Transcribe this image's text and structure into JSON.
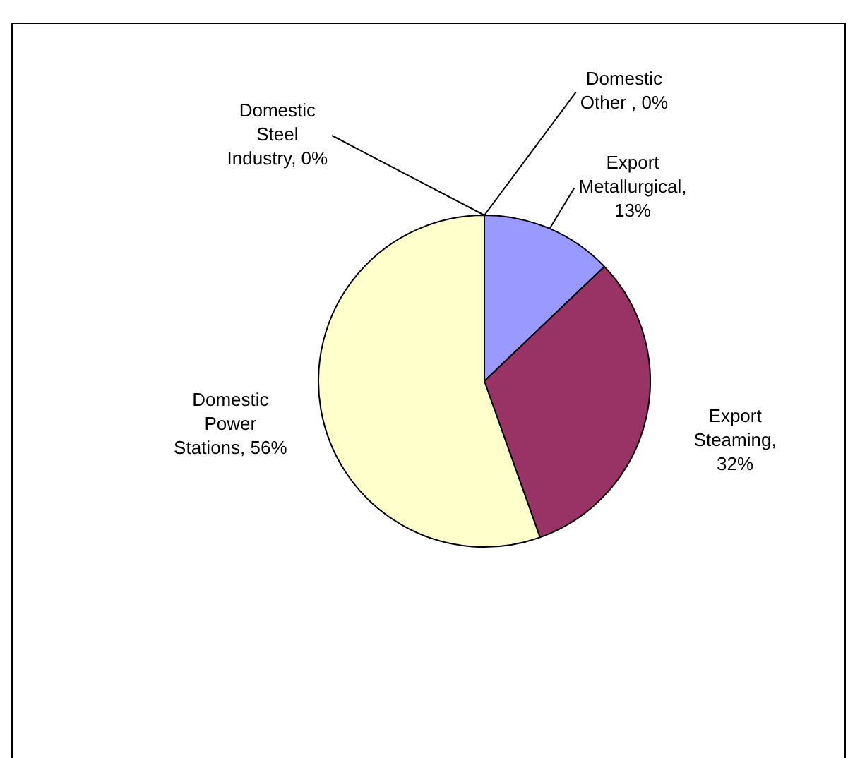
{
  "chart_data": {
    "type": "pie",
    "categories": [
      "Export Metallurgical, 13%",
      "Export Steaming, 32%",
      "Domestic Power Stations, 56%",
      "Domestic Steel Industry, 0%",
      "Domestic Other , 0%"
    ],
    "values": [
      13,
      32,
      56,
      0,
      0
    ],
    "colors": [
      "#9999ff",
      "#993366",
      "#ffffcc",
      "#ccffff",
      "#660066"
    ],
    "legend": false
  }
}
